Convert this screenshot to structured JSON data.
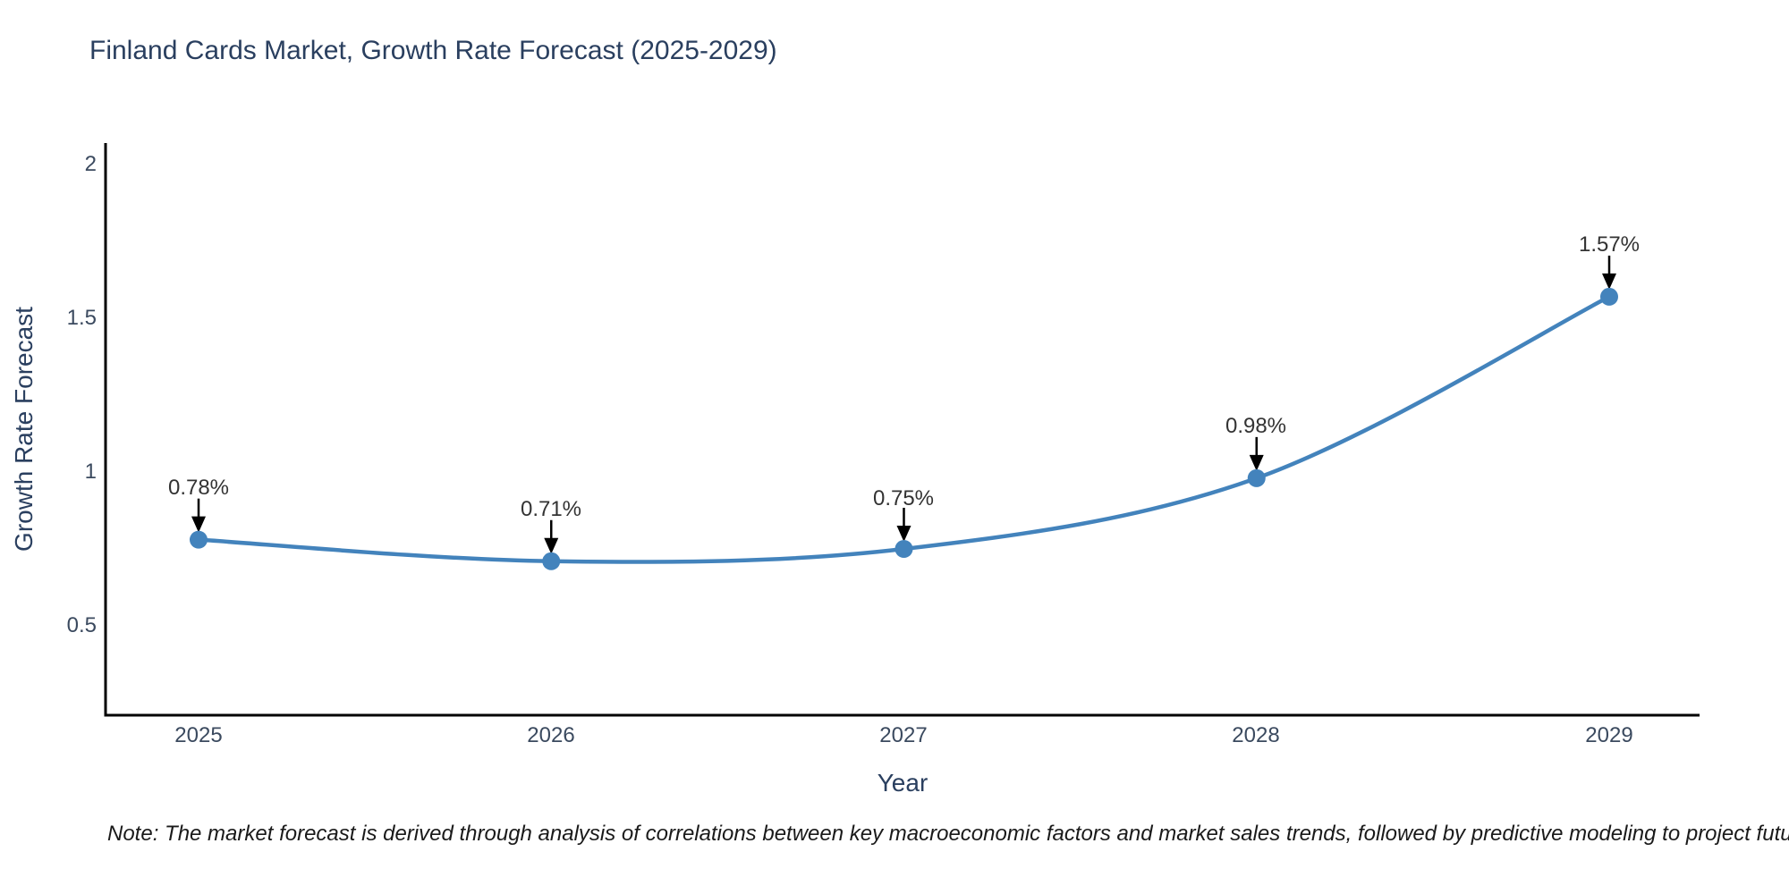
{
  "chart_data": {
    "type": "line",
    "title": "Finland Cards Market, Growth Rate Forecast (2025-2029)",
    "x": [
      2025,
      2026,
      2027,
      2028,
      2029
    ],
    "x_labels": [
      "2025",
      "2026",
      "2027",
      "2028",
      "2029"
    ],
    "values": [
      0.78,
      0.71,
      0.75,
      0.98,
      1.57
    ],
    "point_labels": [
      "0.78%",
      "0.71%",
      "0.75%",
      "0.98%",
      "1.57%"
    ],
    "xlabel": "Year",
    "ylabel": "Growth Rate Forecast",
    "y_ticks": [
      "2",
      "1.5",
      "1",
      "0.5"
    ],
    "y_tick_values": [
      2,
      1.5,
      1,
      0.5
    ],
    "ylim": [
      0.21,
      2.07
    ],
    "xlim": [
      2024.74,
      2029.26
    ],
    "line_shape": "spline",
    "grid": "off",
    "legend": "none",
    "annotations_style": "value label with down arrow to each point",
    "colors": {
      "line": "#4383bc",
      "marker": "#4383bc",
      "axis": "#000000",
      "arrow": "#000000",
      "title_text": "#2a3f5f",
      "tick_text": "#3b4a5f",
      "annotation_text": "#333333"
    },
    "note": "Note: The market forecast is derived through analysis of correlations between key macroeconomic factors and market sales trends, followed by predictive modeling to project future sales"
  }
}
